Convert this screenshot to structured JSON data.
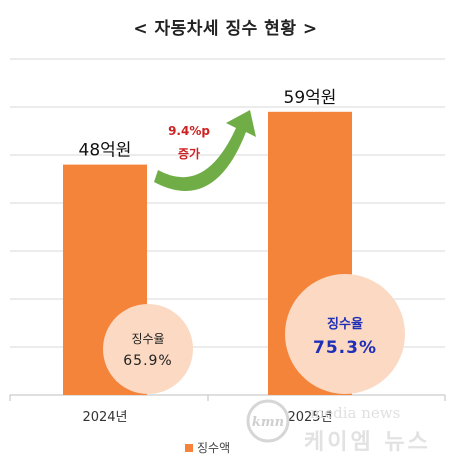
{
  "chart_data": {
    "type": "bar",
    "title": "< 자동차세 징수 현황 >",
    "categories": [
      "2024년",
      "2025년"
    ],
    "series": [
      {
        "name": "징수액",
        "values": [
          48,
          59
        ],
        "color": "#f5843b"
      }
    ],
    "value_labels": [
      "48억원",
      "59억원"
    ],
    "collection_rate": {
      "labels": [
        "징수율",
        "징수율"
      ],
      "values": [
        "65.9%",
        "75.3%"
      ],
      "circle_color": "#fbd9c3",
      "label_colors": [
        "#222222",
        "#1f2fb8"
      ]
    },
    "increase_annotation": {
      "text_lines": [
        "9.4%p",
        "증가"
      ],
      "text_color": "#cc2222",
      "arrow_color": "#70ad47"
    },
    "ylim": [
      0,
      70
    ],
    "grid": true,
    "legend": "bottom-center"
  },
  "watermark": {
    "logo_text": "kmn",
    "latin_text": "media news",
    "korean_text": "케이엠 뉴스"
  }
}
